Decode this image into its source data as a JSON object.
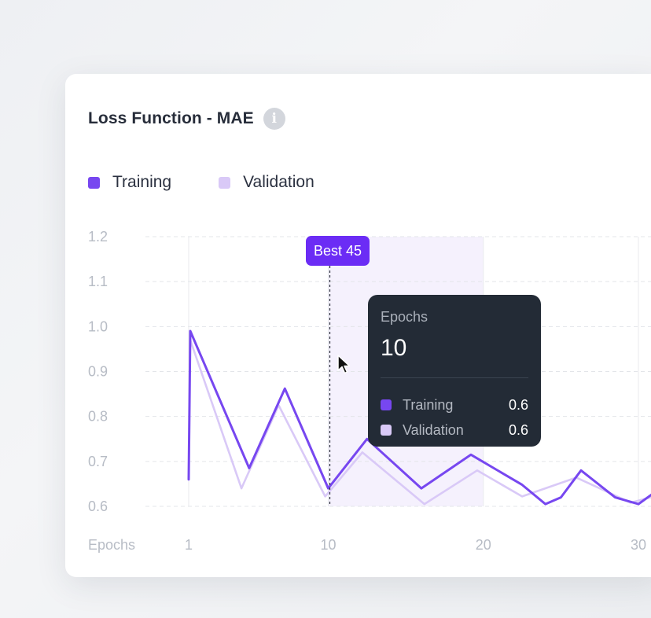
{
  "header": {
    "title": "Loss Function - MAE",
    "info_icon": "info-icon"
  },
  "legend": [
    {
      "label": "Training",
      "color": "#7747f0"
    },
    {
      "label": "Validation",
      "color": "#d9c9f7"
    }
  ],
  "best_badge": {
    "label": "Best 45"
  },
  "tooltip": {
    "label": "Epochs",
    "value": "10",
    "rows": [
      {
        "name": "Training",
        "value": "0.6",
        "color": "#7747f0"
      },
      {
        "name": "Validation",
        "value": "0.6",
        "color": "#d9c9f7"
      }
    ]
  },
  "chart_data": {
    "type": "line",
    "title": "Loss Function - MAE",
    "xlabel": "Epochs",
    "ylabel": "",
    "ylim": [
      0.6,
      1.2
    ],
    "xlim": [
      1,
      31
    ],
    "y_ticks": [
      "0.6",
      "0.7",
      "0.8",
      "0.9",
      "1.0",
      "1.1",
      "1.2"
    ],
    "x_ticks": [
      "1",
      "10",
      "20",
      "30"
    ],
    "grid": true,
    "legend_position": "top-left",
    "highlight_range": [
      10,
      20
    ],
    "marker_x": 10,
    "series": [
      {
        "name": "Training",
        "color": "#7747f0",
        "x": [
          1,
          1.1,
          4.9,
          7.2,
          10.0,
          12.5,
          16.0,
          19.2,
          22.5,
          24.0,
          25.0,
          26.3,
          28.5,
          30.0,
          31.0
        ],
        "y": [
          0.66,
          0.99,
          0.685,
          0.862,
          0.64,
          0.75,
          0.64,
          0.715,
          0.648,
          0.605,
          0.62,
          0.68,
          0.62,
          0.605,
          0.63
        ]
      },
      {
        "name": "Validation",
        "color": "#d9c9f7",
        "x": [
          1.1,
          4.4,
          6.8,
          9.8,
          12.2,
          16.2,
          19.6,
          22.5,
          26.0,
          27.5,
          29.5,
          31.0
        ],
        "y": [
          0.97,
          0.64,
          0.825,
          0.622,
          0.72,
          0.605,
          0.68,
          0.622,
          0.664,
          0.64,
          0.608,
          0.622
        ]
      }
    ]
  }
}
